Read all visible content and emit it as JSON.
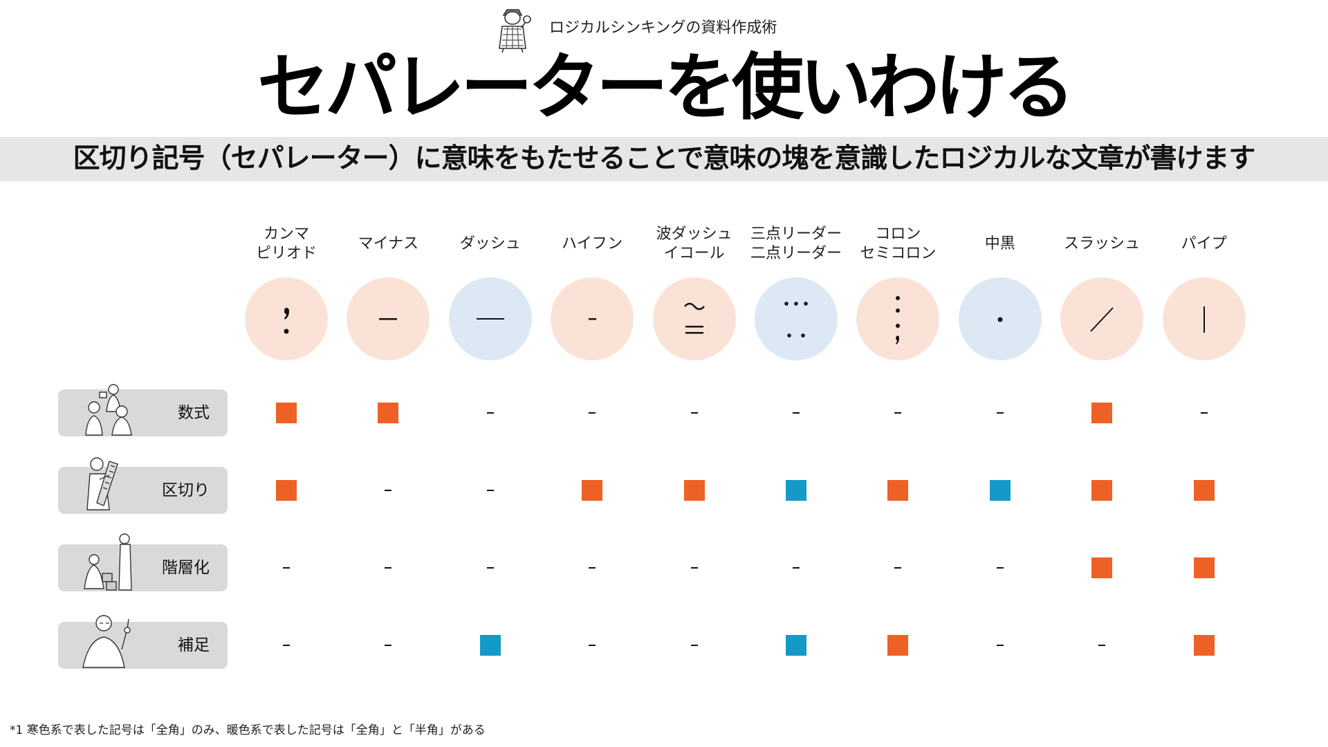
{
  "header": {
    "series_label": "ロジカルシンキングの資料作成術",
    "mascot_icon": "detective-mascot-icon"
  },
  "title": "セパレーターを使いわける",
  "subtitle": "区切り記号（セパレーター）に意味をもたせることで意味の塊を意識したロジカルな文章が書けます",
  "colors": {
    "orange_mark": "#ee6126",
    "blue_mark": "#149ac8",
    "warm_circle": "#fae3d6",
    "cool_circle": "#dde8f5",
    "band": "#e6e6e6",
    "row_label_bg": "#d9d9d9"
  },
  "columns": [
    {
      "lines": [
        "カンマ",
        "ピリオド"
      ],
      "tone": "warm",
      "symbol": "comma-period"
    },
    {
      "lines": [
        "マイナス"
      ],
      "tone": "warm",
      "symbol": "minus"
    },
    {
      "lines": [
        "ダッシュ"
      ],
      "tone": "cool",
      "symbol": "dash"
    },
    {
      "lines": [
        "ハイフン"
      ],
      "tone": "warm",
      "symbol": "hyphen"
    },
    {
      "lines": [
        "波ダッシュ",
        "イコール"
      ],
      "tone": "warm",
      "symbol": "wave-dash-equals"
    },
    {
      "lines": [
        "三点リーダー",
        "二点リーダー"
      ],
      "tone": "cool",
      "symbol": "ellipsis"
    },
    {
      "lines": [
        "コロン",
        "セミコロン"
      ],
      "tone": "warm",
      "symbol": "colon-semicolon"
    },
    {
      "lines": [
        "中黒"
      ],
      "tone": "cool",
      "symbol": "middle-dot"
    },
    {
      "lines": [
        "スラッシュ"
      ],
      "tone": "warm",
      "symbol": "slash"
    },
    {
      "lines": [
        "パイプ"
      ],
      "tone": "warm",
      "symbol": "pipe"
    }
  ],
  "rows": [
    {
      "label": "数式",
      "illustration": "group-discussion-icon",
      "cells": [
        "orange",
        "orange",
        "none",
        "none",
        "none",
        "none",
        "none",
        "none",
        "orange",
        "none"
      ]
    },
    {
      "label": "区切り",
      "illustration": "man-with-saw-icon",
      "cells": [
        "orange",
        "none",
        "none",
        "orange",
        "orange",
        "blue",
        "orange",
        "blue",
        "orange",
        "orange"
      ]
    },
    {
      "label": "階層化",
      "illustration": "people-stacking-blocks-icon",
      "cells": [
        "none",
        "none",
        "none",
        "none",
        "none",
        "none",
        "none",
        "none",
        "orange",
        "orange"
      ]
    },
    {
      "label": "補足",
      "illustration": "man-pointing-finger-icon",
      "cells": [
        "none",
        "none",
        "blue",
        "none",
        "none",
        "blue",
        "orange",
        "none",
        "none",
        "orange"
      ]
    }
  ],
  "footnote": "*1 寒色系で表した記号は「全角」のみ、暖色系で表した記号は「全角」と「半角」がある"
}
